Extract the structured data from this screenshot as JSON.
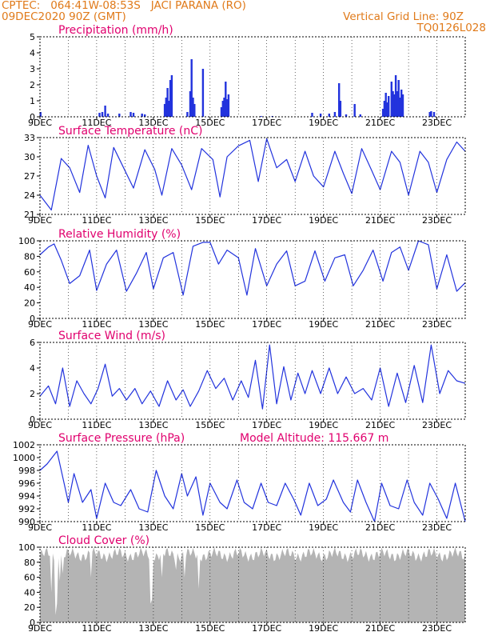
{
  "header": {
    "line1_left": "CPTEC:   064:41W-08:53S   JACI PARANA (RO)",
    "line2_left": "09DEC2020 90Z (GMT)",
    "line1_right": "Vertical Grid Line: 90Z",
    "line2_right": "TQ0126L028"
  },
  "colors": {
    "title": "#e0006e",
    "header": "#e07a1a",
    "line": "#2233dd",
    "cloud": "#b4b4b4"
  },
  "chart_data": [
    {
      "type": "bar",
      "title": "Precipitation (mm/h)",
      "ylim": [
        0,
        5
      ],
      "yticks": [
        "0",
        "1",
        "2",
        "3",
        "4",
        "5"
      ],
      "xticks": [
        "9DEC",
        "11DEC",
        "13DEC",
        "15DEC",
        "17DEC",
        "19DEC",
        "21DEC",
        "23DEC"
      ],
      "xlim_days": [
        0,
        15
      ],
      "bars": [
        [
          0.02,
          0.3
        ],
        [
          2.1,
          0.25
        ],
        [
          2.2,
          0.3
        ],
        [
          2.3,
          0.7
        ],
        [
          2.4,
          0.2
        ],
        [
          2.8,
          0.2
        ],
        [
          3.2,
          0.3
        ],
        [
          3.3,
          0.25
        ],
        [
          3.6,
          0.2
        ],
        [
          3.7,
          0.15
        ],
        [
          4.4,
          0.8
        ],
        [
          4.45,
          1.2
        ],
        [
          4.5,
          1.8
        ],
        [
          4.55,
          1.0
        ],
        [
          4.6,
          2.3
        ],
        [
          4.65,
          2.6
        ],
        [
          5.2,
          0.3
        ],
        [
          5.3,
          1.6
        ],
        [
          5.35,
          3.6
        ],
        [
          5.4,
          1.2
        ],
        [
          5.45,
          0.8
        ],
        [
          5.75,
          3.0
        ],
        [
          6.4,
          0.6
        ],
        [
          6.45,
          1.0
        ],
        [
          6.5,
          1.2
        ],
        [
          6.55,
          2.2
        ],
        [
          6.6,
          1.1
        ],
        [
          6.65,
          1.4
        ],
        [
          7.8,
          0.05
        ],
        [
          8.2,
          0.05
        ],
        [
          9.6,
          0.25
        ],
        [
          9.9,
          0.2
        ],
        [
          10.2,
          0.2
        ],
        [
          10.4,
          0.3
        ],
        [
          10.55,
          2.1
        ],
        [
          10.6,
          1.0
        ],
        [
          10.8,
          0.15
        ],
        [
          11.1,
          0.8
        ],
        [
          11.3,
          0.15
        ],
        [
          12.1,
          0.5
        ],
        [
          12.15,
          1.0
        ],
        [
          12.2,
          1.5
        ],
        [
          12.25,
          0.9
        ],
        [
          12.3,
          1.3
        ],
        [
          12.4,
          2.2
        ],
        [
          12.45,
          1.6
        ],
        [
          12.5,
          1.4
        ],
        [
          12.55,
          2.6
        ],
        [
          12.6,
          1.6
        ],
        [
          12.65,
          2.3
        ],
        [
          12.7,
          1.2
        ],
        [
          12.75,
          1.7
        ],
        [
          12.8,
          1.4
        ],
        [
          13.75,
          0.3
        ],
        [
          13.8,
          0.35
        ],
        [
          13.9,
          0.3
        ]
      ]
    },
    {
      "type": "line",
      "title": "Surface Temperature (nC)",
      "ylim": [
        21,
        35
      ],
      "yticks": [
        "21",
        "24",
        "27",
        "30",
        "33"
      ],
      "xticks": [
        "9DEC",
        "11DEC",
        "13DEC",
        "15DEC",
        "17DEC",
        "19DEC",
        "21DEC",
        "23DEC"
      ],
      "xlim_days": [
        0,
        15
      ],
      "x": [
        0,
        0.4,
        0.75,
        1.05,
        1.4,
        1.7,
        2.0,
        2.3,
        2.6,
        2.95,
        3.3,
        3.7,
        4.05,
        4.3,
        4.65,
        5.0,
        5.35,
        5.7,
        6.1,
        6.35,
        6.6,
        7.0,
        7.4,
        7.7,
        8.0,
        8.35,
        8.7,
        9.0,
        9.35,
        9.65,
        10.0,
        10.4,
        10.7,
        11.0,
        11.35,
        11.7,
        12.0,
        12.4,
        12.7,
        13.0,
        13.4,
        13.7,
        14.0,
        14.35,
        14.7,
        15.0
      ],
      "y": [
        24.5,
        21.8,
        31.2,
        29.5,
        25.0,
        33.6,
        28.0,
        24.0,
        33.2,
        29.5,
        25.8,
        32.8,
        29.2,
        24.5,
        33.0,
        30.0,
        25.5,
        33.0,
        31.0,
        24.2,
        31.5,
        33.5,
        34.5,
        27.0,
        34.8,
        29.5,
        31.0,
        27.0,
        32.5,
        28.0,
        26.0,
        32.5,
        28.5,
        24.8,
        33.0,
        29.0,
        25.5,
        32.5,
        30.5,
        24.5,
        32.5,
        30.5,
        25.0,
        31.0,
        34.2,
        32.5
      ]
    },
    {
      "type": "line",
      "title": "Relative Humidity (%)",
      "ylim": [
        0,
        100
      ],
      "yticks": [
        "0",
        "20",
        "40",
        "60",
        "80",
        "100"
      ],
      "xticks": [
        "9DEC",
        "11DEC",
        "13DEC",
        "15DEC",
        "17DEC",
        "19DEC",
        "21DEC",
        "23DEC"
      ],
      "xlim_days": [
        0,
        15
      ],
      "x": [
        0,
        0.3,
        0.5,
        0.75,
        1.05,
        1.4,
        1.75,
        2.0,
        2.35,
        2.7,
        3.05,
        3.4,
        3.75,
        4.0,
        4.35,
        4.7,
        5.05,
        5.4,
        5.75,
        6.0,
        6.3,
        6.6,
        7.0,
        7.3,
        7.6,
        8.0,
        8.35,
        8.7,
        9.0,
        9.35,
        9.7,
        10.05,
        10.4,
        10.75,
        11.05,
        11.4,
        11.75,
        12.1,
        12.4,
        12.7,
        13.0,
        13.35,
        13.7,
        14.0,
        14.35,
        14.7,
        15.0
      ],
      "y": [
        82,
        92,
        96,
        75,
        45,
        55,
        88,
        36,
        70,
        88,
        35,
        58,
        85,
        38,
        78,
        85,
        30,
        93,
        98,
        98,
        70,
        88,
        78,
        30,
        90,
        42,
        70,
        87,
        42,
        48,
        87,
        48,
        78,
        82,
        42,
        62,
        88,
        48,
        85,
        92,
        62,
        100,
        95,
        38,
        82,
        35,
        46
      ]
    },
    {
      "type": "line",
      "title": "Surface Wind (m/s)",
      "ylim": [
        0,
        6
      ],
      "yticks": [
        "0",
        "2",
        "4",
        "6"
      ],
      "xticks": [
        "9DEC",
        "11DEC",
        "13DEC",
        "15DEC",
        "17DEC",
        "19DEC",
        "21DEC",
        "23DEC"
      ],
      "xlim_days": [
        0,
        15
      ],
      "x": [
        0,
        0.3,
        0.55,
        0.8,
        1.05,
        1.3,
        1.55,
        1.8,
        2.05,
        2.3,
        2.55,
        2.8,
        3.05,
        3.35,
        3.6,
        3.9,
        4.2,
        4.5,
        4.8,
        5.05,
        5.3,
        5.6,
        5.9,
        6.2,
        6.5,
        6.8,
        7.1,
        7.35,
        7.6,
        7.85,
        8.1,
        8.35,
        8.6,
        8.85,
        9.1,
        9.35,
        9.6,
        9.9,
        10.2,
        10.5,
        10.8,
        11.1,
        11.4,
        11.7,
        12.0,
        12.3,
        12.6,
        12.9,
        13.2,
        13.5,
        13.8,
        14.1,
        14.4,
        14.7,
        15.0
      ],
      "y": [
        1.8,
        2.6,
        1.2,
        4.0,
        1.0,
        3.0,
        2.0,
        1.2,
        2.4,
        4.3,
        1.8,
        2.4,
        1.5,
        2.4,
        1.2,
        2.2,
        1.0,
        3.0,
        1.5,
        2.3,
        1.0,
        2.2,
        3.8,
        2.4,
        3.2,
        1.5,
        3.0,
        1.7,
        4.6,
        0.8,
        5.8,
        1.2,
        4.1,
        1.5,
        3.6,
        2.0,
        3.8,
        2.0,
        4.0,
        2.0,
        3.3,
        2.0,
        2.4,
        1.5,
        4.0,
        1.0,
        3.6,
        1.3,
        4.2,
        1.3,
        5.8,
        2.0,
        3.8,
        3.0,
        2.8
      ]
    },
    {
      "type": "line",
      "title": "Surface Pressure (hPa)",
      "annotation": "Model Altitude: 115.667 m",
      "ylim": [
        990,
        1002
      ],
      "yticks": [
        "990",
        "992",
        "994",
        "996",
        "998",
        "1000",
        "1002"
      ],
      "xticks": [
        "9DEC",
        "11DEC",
        "13DEC",
        "15DEC",
        "17DEC",
        "19DEC",
        "21DEC",
        "23DEC"
      ],
      "xlim_days": [
        0,
        15
      ],
      "x": [
        0,
        0.25,
        0.6,
        1.0,
        1.2,
        1.5,
        1.8,
        2.0,
        2.3,
        2.6,
        2.85,
        3.2,
        3.5,
        3.8,
        4.1,
        4.4,
        4.7,
        5.0,
        5.2,
        5.5,
        5.75,
        6.0,
        6.35,
        6.6,
        6.95,
        7.2,
        7.5,
        7.8,
        8.05,
        8.35,
        8.65,
        8.95,
        9.2,
        9.5,
        9.8,
        10.1,
        10.35,
        10.7,
        10.95,
        11.2,
        11.5,
        11.8,
        12.05,
        12.35,
        12.65,
        12.95,
        13.2,
        13.5,
        13.75,
        14.05,
        14.35,
        14.65,
        15.0
      ],
      "y": [
        998,
        999,
        1001,
        993,
        997.5,
        993,
        995,
        990.5,
        996,
        993,
        992.5,
        995,
        992,
        991.5,
        998,
        994,
        992,
        997.5,
        994,
        997,
        991,
        996,
        993,
        992,
        996.5,
        993,
        992,
        996,
        993,
        992.5,
        996,
        993.5,
        991,
        996,
        992.5,
        993.5,
        996.5,
        993,
        991.5,
        996.5,
        993,
        990,
        996,
        992.5,
        992,
        996.5,
        993,
        991,
        996,
        993.5,
        990.5,
        996,
        990
      ]
    },
    {
      "type": "area",
      "title": "Cloud Cover (%)",
      "ylim": [
        0,
        100
      ],
      "yticks": [
        "0",
        "20",
        "40",
        "60",
        "80",
        "100"
      ],
      "xticks": [
        "9DEC",
        "11DEC",
        "13DEC",
        "15DEC",
        "17DEC",
        "19DEC",
        "21DEC",
        "23DEC"
      ],
      "xlim_days": [
        0,
        15
      ],
      "base_level": 90,
      "dips": [
        [
          0.4,
          40
        ],
        [
          0.55,
          10
        ],
        [
          0.62,
          25
        ],
        [
          0.7,
          55
        ],
        [
          0.8,
          65
        ],
        [
          1.8,
          60
        ],
        [
          3.9,
          25
        ],
        [
          3.95,
          30
        ],
        [
          4.3,
          60
        ],
        [
          4.8,
          70
        ],
        [
          5.1,
          60
        ],
        [
          5.6,
          45
        ]
      ]
    }
  ]
}
